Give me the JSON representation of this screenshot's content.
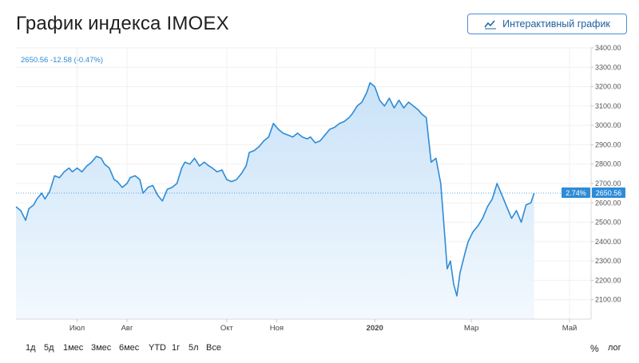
{
  "header": {
    "title": "График индекса IMOEX",
    "interactive_label": "Интерактивный график"
  },
  "legend_text": "2650.56 -12.58 (-0.47%)",
  "last_price": {
    "pct": "2.74%",
    "value": "2650.56"
  },
  "ranges": [
    "1д",
    "5д",
    "1мес",
    "3мес",
    "6мес",
    "YTD",
    "1г",
    "5л",
    "Все"
  ],
  "modes": {
    "percent": "%",
    "log": "лог"
  },
  "colors": {
    "line": "#2e8bd6",
    "area_top": "#c9e2f8",
    "area_bottom": "#f3f9fe",
    "grid": "#f0f0f0",
    "tag": "#2e8bd6",
    "text": "#222222"
  },
  "chart_data": {
    "type": "area",
    "title": "",
    "xlabel": "",
    "ylabel": "",
    "ylim": [
      2000,
      3400
    ],
    "grid": true,
    "y_ticks": [
      "2100.00",
      "2200.00",
      "2300.00",
      "2400.00",
      "2500.00",
      "2600.00",
      "2700.00",
      "2800.00",
      "2900.00",
      "3000.00",
      "3100.00",
      "3200.00",
      "3300.00",
      "3400.00"
    ],
    "x_ticks": [
      {
        "label": "Июл",
        "day": 38
      },
      {
        "label": "Авг",
        "day": 69
      },
      {
        "label": "Окт",
        "day": 131
      },
      {
        "label": "Ноя",
        "day": 162
      },
      {
        "label": "2020",
        "day": 223
      },
      {
        "label": "Мар",
        "day": 283
      },
      {
        "label": "Май",
        "day": 344
      }
    ],
    "series": [
      {
        "points": [
          [
            0,
            2580
          ],
          [
            3,
            2560
          ],
          [
            6,
            2510
          ],
          [
            8,
            2570
          ],
          [
            11,
            2590
          ],
          [
            13,
            2620
          ],
          [
            16,
            2650
          ],
          [
            18,
            2620
          ],
          [
            21,
            2660
          ],
          [
            24,
            2740
          ],
          [
            27,
            2730
          ],
          [
            30,
            2760
          ],
          [
            33,
            2780
          ],
          [
            35,
            2760
          ],
          [
            38,
            2780
          ],
          [
            41,
            2760
          ],
          [
            44,
            2790
          ],
          [
            47,
            2810
          ],
          [
            50,
            2840
          ],
          [
            53,
            2830
          ],
          [
            55,
            2800
          ],
          [
            58,
            2780
          ],
          [
            61,
            2720
          ],
          [
            63,
            2710
          ],
          [
            66,
            2680
          ],
          [
            69,
            2700
          ],
          [
            71,
            2730
          ],
          [
            74,
            2740
          ],
          [
            77,
            2720
          ],
          [
            79,
            2650
          ],
          [
            82,
            2680
          ],
          [
            85,
            2690
          ],
          [
            88,
            2640
          ],
          [
            91,
            2610
          ],
          [
            94,
            2670
          ],
          [
            97,
            2680
          ],
          [
            100,
            2700
          ],
          [
            103,
            2780
          ],
          [
            105,
            2810
          ],
          [
            108,
            2800
          ],
          [
            111,
            2830
          ],
          [
            114,
            2790
          ],
          [
            117,
            2810
          ],
          [
            120,
            2790
          ],
          [
            122,
            2780
          ],
          [
            125,
            2760
          ],
          [
            128,
            2770
          ],
          [
            131,
            2720
          ],
          [
            134,
            2710
          ],
          [
            137,
            2720
          ],
          [
            140,
            2750
          ],
          [
            143,
            2790
          ],
          [
            145,
            2860
          ],
          [
            148,
            2870
          ],
          [
            151,
            2890
          ],
          [
            154,
            2920
          ],
          [
            157,
            2940
          ],
          [
            160,
            3010
          ],
          [
            163,
            2980
          ],
          [
            166,
            2960
          ],
          [
            169,
            2950
          ],
          [
            172,
            2940
          ],
          [
            175,
            2960
          ],
          [
            178,
            2940
          ],
          [
            181,
            2930
          ],
          [
            183,
            2940
          ],
          [
            186,
            2910
          ],
          [
            189,
            2920
          ],
          [
            192,
            2950
          ],
          [
            195,
            2980
          ],
          [
            198,
            2990
          ],
          [
            201,
            3010
          ],
          [
            204,
            3020
          ],
          [
            207,
            3040
          ],
          [
            209,
            3060
          ],
          [
            212,
            3100
          ],
          [
            215,
            3120
          ],
          [
            218,
            3170
          ],
          [
            220,
            3220
          ],
          [
            223,
            3200
          ],
          [
            226,
            3130
          ],
          [
            229,
            3100
          ],
          [
            232,
            3140
          ],
          [
            235,
            3090
          ],
          [
            238,
            3130
          ],
          [
            241,
            3090
          ],
          [
            244,
            3120
          ],
          [
            247,
            3100
          ],
          [
            250,
            3080
          ],
          [
            252,
            3060
          ],
          [
            255,
            3040
          ],
          [
            258,
            2810
          ],
          [
            261,
            2830
          ],
          [
            264,
            2700
          ],
          [
            266,
            2480
          ],
          [
            268,
            2260
          ],
          [
            270,
            2300
          ],
          [
            272,
            2180
          ],
          [
            274,
            2120
          ],
          [
            276,
            2240
          ],
          [
            279,
            2340
          ],
          [
            281,
            2400
          ],
          [
            284,
            2450
          ],
          [
            287,
            2480
          ],
          [
            290,
            2520
          ],
          [
            293,
            2580
          ],
          [
            296,
            2620
          ],
          [
            299,
            2700
          ],
          [
            302,
            2640
          ],
          [
            305,
            2580
          ],
          [
            308,
            2520
          ],
          [
            311,
            2560
          ],
          [
            314,
            2500
          ],
          [
            317,
            2590
          ],
          [
            320,
            2600
          ],
          [
            322,
            2650.56
          ]
        ]
      }
    ]
  }
}
